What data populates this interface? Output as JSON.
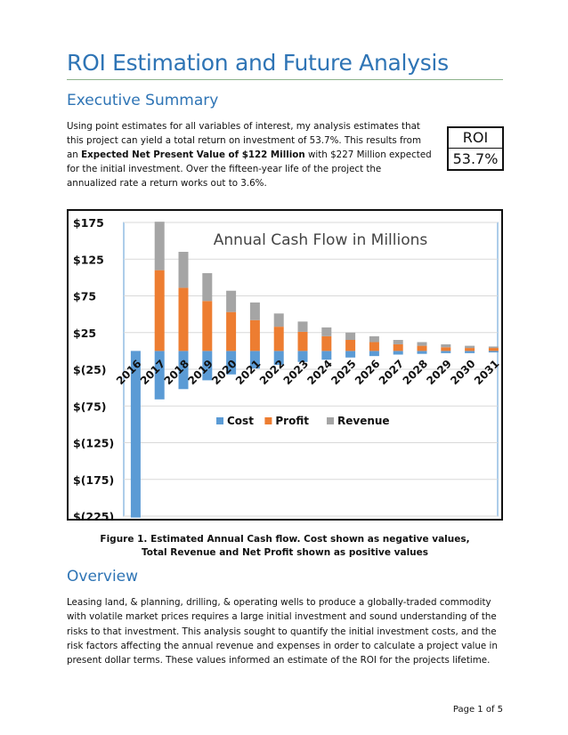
{
  "document": {
    "title": "ROI Estimation and Future Analysis",
    "sections": [
      {
        "heading": "Executive Summary"
      },
      {
        "heading": "Overview"
      }
    ],
    "executive_summary": {
      "p1": "Using point estimates for all variables of interest, my analysis estimates that this project can yield a total return on investment of 53.7%.  This results from an ",
      "bold": "Expected Net Present Value of $122 Million",
      "p2": " with $227 Million expected for the initial investment.  Over the fifteen-year life of the project the annualized rate a return works out to 3.6%."
    },
    "roi_box": {
      "label": "ROI",
      "value": "53.7%"
    },
    "overview_text": "Leasing land, & planning, drilling, & operating wells to produce a globally-traded commodity with volatile market prices requires a large initial investment and sound understanding of the risks to that investment.  This analysis sought to quantify the initial investment costs, and the risk factors affecting the annual revenue and expenses in order to calculate a project value in present dollar terms.  These values informed an estimate of the ROI for the projects lifetime.",
    "caption": {
      "line1": "Figure 1. Estimated Annual Cash flow.  Cost shown as negative values,",
      "line2": "Total Revenue and Net Profit shown as positive values"
    },
    "page_number": "Page 1 of 5"
  },
  "colors": {
    "cost": "#5b9bd5",
    "profit": "#ed7d31",
    "revenue": "#a5a5a5",
    "heading": "#2e74b5"
  },
  "chart_data": {
    "type": "bar",
    "stacked": true,
    "title": "Annual Cash Flow in Millions",
    "categories": [
      "2016",
      "2017",
      "2018",
      "2019",
      "2020",
      "2021",
      "2022",
      "2023",
      "2024",
      "2025",
      "2026",
      "2027",
      "2028",
      "2029",
      "2030",
      "2031"
    ],
    "series": [
      {
        "name": "Cost",
        "values": [
          -227,
          -66,
          -52,
          -40,
          -32,
          -24,
          -19,
          -15,
          -12,
          -9,
          -7,
          -5,
          -4,
          -3,
          -3,
          -2
        ]
      },
      {
        "name": "Profit",
        "values": [
          0,
          110,
          86,
          68,
          53,
          42,
          33,
          26,
          20,
          15,
          12,
          9,
          7,
          5,
          4,
          4
        ]
      },
      {
        "name": "Revenue",
        "values": [
          0,
          66,
          49,
          38,
          29,
          24,
          18,
          14,
          12,
          10,
          8,
          6,
          5,
          4,
          3,
          2
        ]
      }
    ],
    "y_tick_labels": [
      "$175",
      "$125",
      "$75",
      "$25",
      "$(25)",
      "$(75)",
      "$(125)",
      "$(175)",
      "$(225)"
    ],
    "y_tick_values": [
      175,
      125,
      75,
      25,
      -25,
      -75,
      -125,
      -175,
      -225
    ],
    "ylim": [
      -225,
      175
    ],
    "legend": [
      "Cost",
      "Profit",
      "Revenue"
    ],
    "legend_position": "center",
    "grid": true
  }
}
